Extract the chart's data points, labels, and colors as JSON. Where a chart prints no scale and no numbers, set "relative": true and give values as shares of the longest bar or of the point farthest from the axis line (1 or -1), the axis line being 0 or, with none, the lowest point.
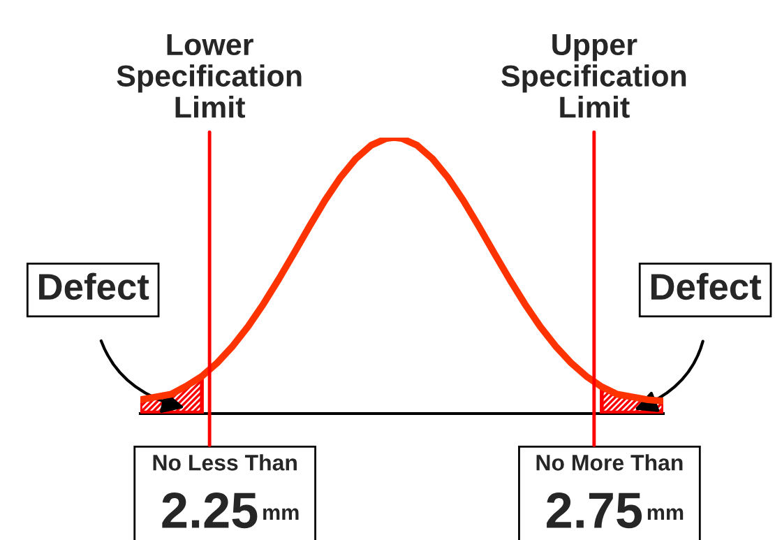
{
  "chart_data": {
    "type": "line",
    "relative": true,
    "x": [
      2.16,
      2.18,
      2.2,
      2.22,
      2.24,
      2.26,
      2.28,
      2.3,
      2.32,
      2.34,
      2.36,
      2.38,
      2.4,
      2.42,
      2.44,
      2.46,
      2.48,
      2.49,
      2.5,
      2.52,
      2.54,
      2.56,
      2.58,
      2.6,
      2.62,
      2.64,
      2.66,
      2.68,
      2.7,
      2.72,
      2.74,
      2.76,
      2.78,
      2.8,
      2.82,
      2.84
    ],
    "series": [
      {
        "color": "#ff3300",
        "values": [
          0.05,
          0.06,
          0.07,
          0.1,
          0.135,
          0.184,
          0.244,
          0.315,
          0.397,
          0.487,
          0.582,
          0.679,
          0.772,
          0.855,
          0.923,
          0.972,
          0.997,
          1,
          0.997,
          0.972,
          0.923,
          0.855,
          0.772,
          0.679,
          0.582,
          0.487,
          0.397,
          0.315,
          0.244,
          0.184,
          0.135,
          0.097,
          0.07,
          0.06,
          0.05,
          0.045
        ]
      }
    ],
    "xlim": [
      2.16,
      2.84
    ],
    "xticks": [
      2.25,
      2.75
    ],
    "xlabel": "mm",
    "tick_labels": "x",
    "marker": "none",
    "line_style": "solid",
    "ref_lines": [
      {
        "axis": "x",
        "value": 2.25,
        "label": "Lower\nSpecification\nLimit",
        "color": "#ff0000"
      },
      {
        "axis": "x",
        "value": 2.75,
        "label": "Upper\nSpecification\nLimit",
        "color": "#ff0000"
      }
    ],
    "annotations": [
      "Defect",
      "Defect",
      "No Less Than",
      "No More Than"
    ]
  }
}
